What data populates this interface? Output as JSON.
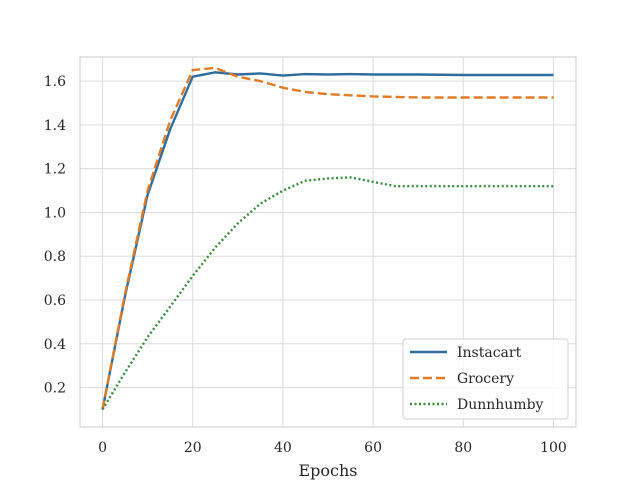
{
  "chart_data": {
    "type": "line",
    "title": "",
    "xlabel": "Epochs",
    "ylabel": "",
    "xlim": [
      -5,
      105
    ],
    "ylim": [
      0.02,
      1.71
    ],
    "xticks": [
      0,
      20,
      40,
      60,
      80,
      100
    ],
    "yticks": [
      0.2,
      0.4,
      0.6,
      0.8,
      1.0,
      1.2,
      1.4,
      1.6
    ],
    "x_tick_labels": [
      "0",
      "20",
      "40",
      "60",
      "80",
      "100"
    ],
    "y_tick_labels": [
      "0.2",
      "0.4",
      "0.6",
      "0.8",
      "1.0",
      "1.2",
      "1.4",
      "1.6"
    ],
    "grid": true,
    "legend_position": "lower-right",
    "series": [
      {
        "name": "Instacart",
        "color": "#2f6d9e",
        "dash": "solid",
        "x": [
          0,
          5,
          10,
          15,
          20,
          25,
          30,
          35,
          40,
          45,
          50,
          55,
          60,
          70,
          80,
          90,
          100
        ],
        "y": [
          0.1,
          0.62,
          1.08,
          1.38,
          1.62,
          1.64,
          1.63,
          1.635,
          1.625,
          1.632,
          1.63,
          1.632,
          1.63,
          1.63,
          1.628,
          1.628,
          1.628
        ]
      },
      {
        "name": "Grocery",
        "color": "#e07b28",
        "dash": "dashed",
        "x": [
          0,
          5,
          10,
          15,
          20,
          25,
          30,
          35,
          40,
          45,
          50,
          55,
          60,
          70,
          80,
          90,
          100
        ],
        "y": [
          0.1,
          0.63,
          1.1,
          1.42,
          1.65,
          1.66,
          1.62,
          1.6,
          1.57,
          1.55,
          1.54,
          1.535,
          1.53,
          1.525,
          1.525,
          1.525,
          1.525
        ]
      },
      {
        "name": "Dunnhumby",
        "color": "#3b8a3e",
        "dash": "dotted",
        "x": [
          0,
          5,
          10,
          15,
          20,
          25,
          30,
          35,
          40,
          45,
          50,
          55,
          60,
          65,
          70,
          80,
          90,
          100
        ],
        "y": [
          0.1,
          0.27,
          0.43,
          0.57,
          0.71,
          0.84,
          0.95,
          1.04,
          1.1,
          1.145,
          1.155,
          1.16,
          1.14,
          1.12,
          1.12,
          1.12,
          1.12,
          1.12
        ]
      }
    ]
  }
}
